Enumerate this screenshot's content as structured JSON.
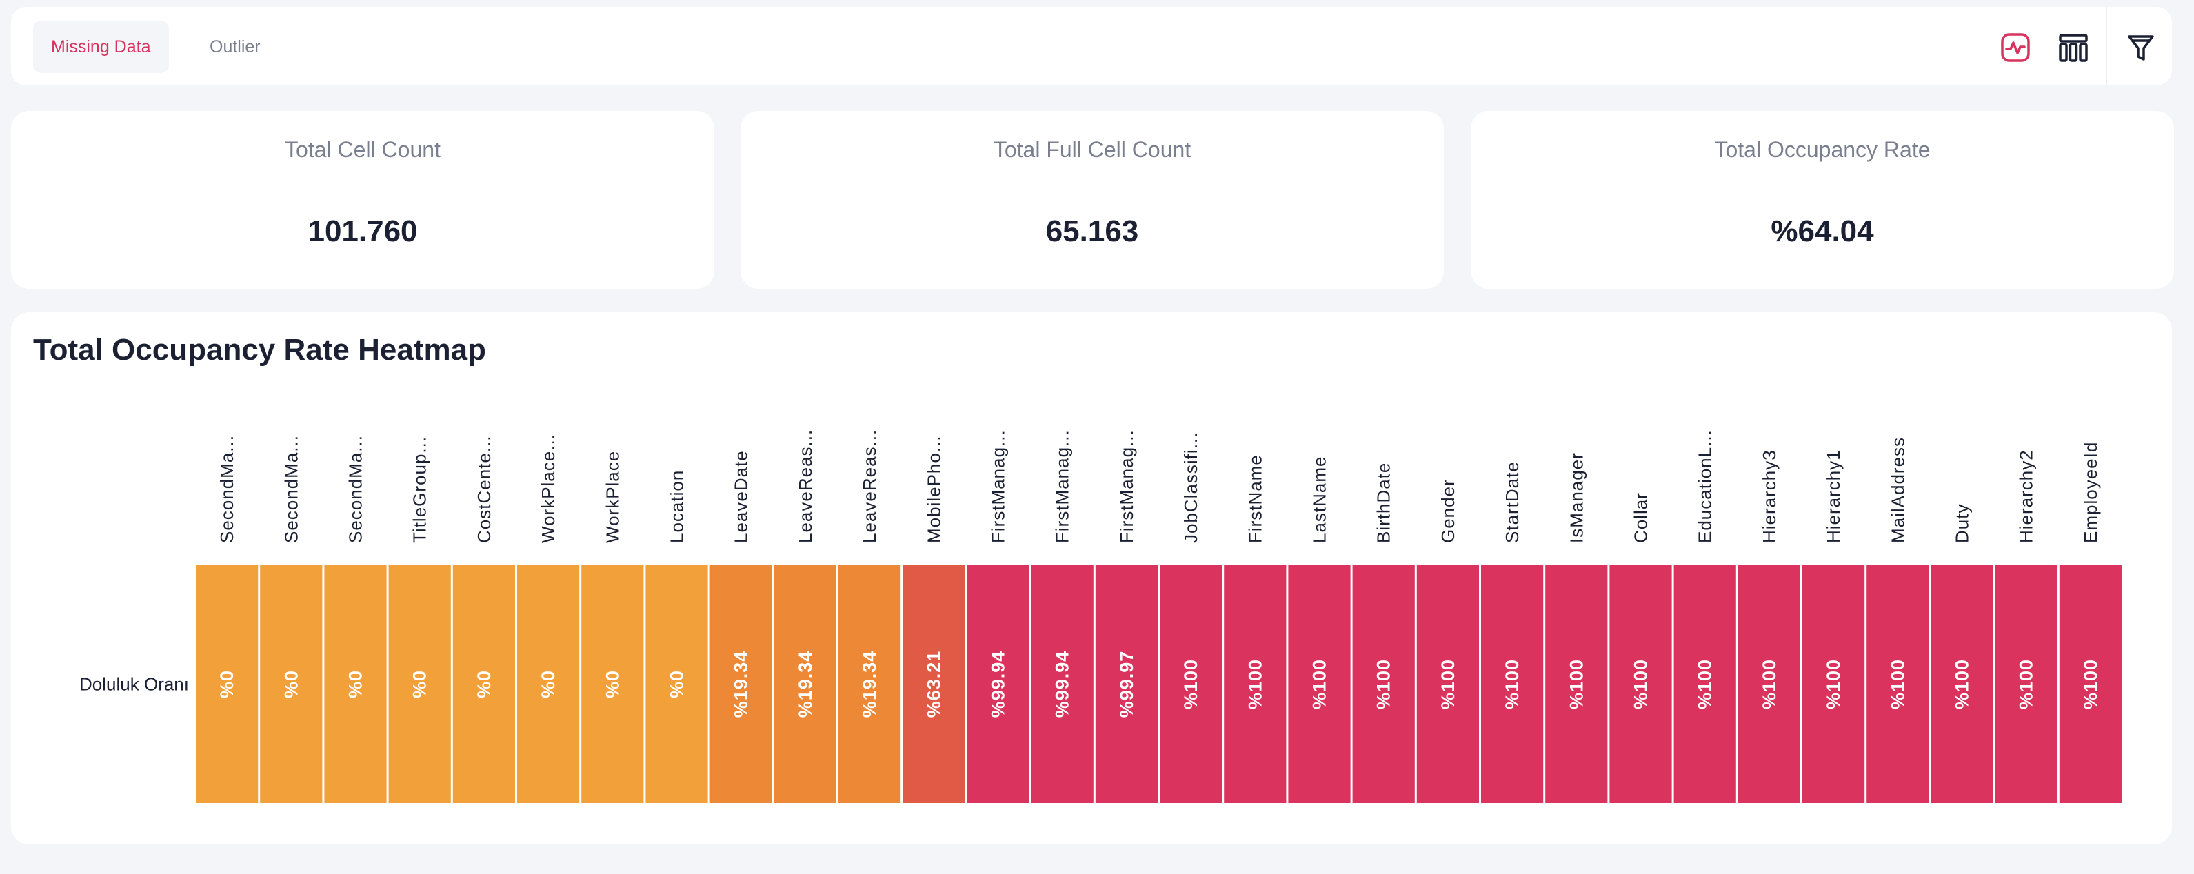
{
  "tabs": [
    {
      "label": "Missing Data",
      "active": true
    },
    {
      "label": "Outlier",
      "active": false
    }
  ],
  "toolbar": {
    "icons": [
      "activity-icon",
      "columns-icon",
      "filter-icon"
    ],
    "accent": "#d8325e"
  },
  "stats": {
    "total_cell": {
      "label": "Total Cell Count",
      "value": "101.760"
    },
    "full_cell": {
      "label": "Total Full Cell Count",
      "value": "65.163"
    },
    "occupancy": {
      "label": "Total Occupancy Rate",
      "value": "%64.04"
    }
  },
  "heatmap_title": "Total Occupancy Rate Heatmap",
  "chart_data": {
    "type": "heatmap",
    "title": "Total Occupancy Rate Heatmap",
    "rows": [
      "Doluluk Oranı"
    ],
    "columns": [
      "SecondMa...",
      "SecondMa...",
      "SecondMa...",
      "TitleGroup...",
      "CostCente...",
      "WorkPlace...",
      "WorkPlace",
      "Location",
      "LeaveDate",
      "LeaveReas...",
      "LeaveReas...",
      "MobilePho...",
      "FirstManag...",
      "FirstManag...",
      "FirstManag...",
      "JobClassifi...",
      "FirstName",
      "LastName",
      "BirthDate",
      "Gender",
      "StartDate",
      "IsManager",
      "Collar",
      "EducationL...",
      "Hierarchy3",
      "Hierarchy1",
      "MailAddress",
      "Duty",
      "Hierarchy2",
      "EmployeeId"
    ],
    "values": [
      0,
      0,
      0,
      0,
      0,
      0,
      0,
      0,
      19.34,
      19.34,
      19.34,
      63.21,
      99.94,
      99.94,
      99.97,
      100,
      100,
      100,
      100,
      100,
      100,
      100,
      100,
      100,
      100,
      100,
      100,
      100,
      100,
      100
    ],
    "labels": [
      "%0",
      "%0",
      "%0",
      "%0",
      "%0",
      "%0",
      "%0",
      "%0",
      "%19.34",
      "%19.34",
      "%19.34",
      "%63.21",
      "%99.94",
      "%99.94",
      "%99.97",
      "%100",
      "%100",
      "%100",
      "%100",
      "%100",
      "%100",
      "%100",
      "%100",
      "%100",
      "%100",
      "%100",
      "%100",
      "%100",
      "%100",
      "%100"
    ],
    "color_scale": [
      "#f2a03a",
      "#ec8836",
      "#e05a46",
      "#da335d"
    ]
  }
}
